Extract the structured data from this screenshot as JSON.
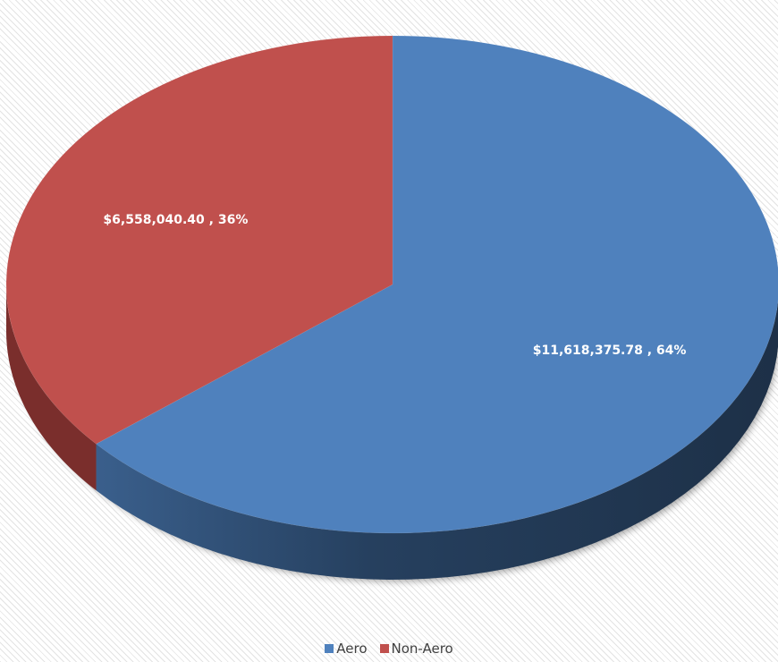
{
  "chart_data": {
    "type": "pie",
    "title": "",
    "slices": [
      {
        "label": "Aero",
        "value": 11618375.78,
        "percent": 64,
        "data_label": "$11,618,375.78 , 64%",
        "color": "#4F81BD",
        "side_color": "#2C4A6E"
      },
      {
        "label": "Non-Aero",
        "value": 6558040.4,
        "percent": 36,
        "data_label": "$6,558,040.40 , 36%",
        "color": "#C0504D",
        "side_color": "#7A2E2C"
      }
    ],
    "legend_position": "bottom",
    "style": "3d"
  }
}
